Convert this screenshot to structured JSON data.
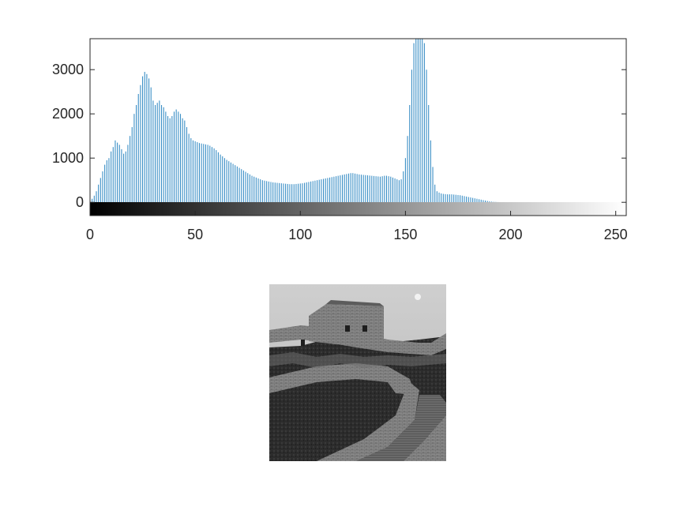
{
  "chart_data": {
    "type": "bar",
    "title": "",
    "xlabel": "",
    "ylabel": "",
    "xlim": [
      0,
      255
    ],
    "ylim": [
      -300,
      3700
    ],
    "xticks": [
      0,
      50,
      100,
      150,
      200,
      250
    ],
    "yticks": [
      0,
      1000,
      2000,
      3000
    ],
    "bar_color": "#3b8fc6",
    "grid": false,
    "colorbar": "grayscale 0-255 below the axes",
    "x_start": 0,
    "values": [
      60,
      80,
      150,
      250,
      400,
      550,
      700,
      850,
      950,
      1000,
      1150,
      1250,
      1400,
      1350,
      1300,
      1200,
      1100,
      1150,
      1300,
      1500,
      1700,
      2000,
      2200,
      2450,
      2650,
      2850,
      2950,
      2900,
      2800,
      2600,
      2300,
      2200,
      2250,
      2300,
      2200,
      2150,
      2050,
      1950,
      1900,
      1950,
      2050,
      2100,
      2050,
      2000,
      1900,
      1850,
      1700,
      1550,
      1450,
      1400,
      1380,
      1360,
      1340,
      1330,
      1320,
      1310,
      1300,
      1280,
      1250,
      1220,
      1180,
      1130,
      1080,
      1040,
      1000,
      960,
      930,
      900,
      870,
      840,
      810,
      780,
      750,
      720,
      690,
      660,
      630,
      600,
      580,
      560,
      540,
      520,
      500,
      490,
      480,
      470,
      460,
      450,
      445,
      440,
      435,
      430,
      425,
      420,
      415,
      410,
      410,
      410,
      415,
      420,
      425,
      430,
      440,
      450,
      460,
      470,
      480,
      490,
      500,
      510,
      520,
      530,
      540,
      550,
      560,
      570,
      580,
      590,
      600,
      610,
      620,
      630,
      640,
      650,
      660,
      660,
      650,
      640,
      630,
      625,
      620,
      615,
      610,
      605,
      600,
      595,
      590,
      585,
      580,
      590,
      600,
      600,
      590,
      580,
      560,
      540,
      520,
      500,
      520,
      700,
      1000,
      1500,
      2200,
      3000,
      3600,
      3750,
      3750,
      3750,
      3750,
      3600,
      3000,
      2200,
      1400,
      800,
      400,
      250,
      220,
      200,
      190,
      185,
      180,
      180,
      180,
      175,
      170,
      165,
      160,
      150,
      140,
      130,
      120,
      110,
      100,
      90,
      80,
      70,
      60,
      50,
      40,
      30,
      20,
      15,
      10,
      8,
      5,
      3,
      2,
      1
    ]
  },
  "figure_image": {
    "description_name": "grayscale photo of stone fortress on a hillside"
  }
}
